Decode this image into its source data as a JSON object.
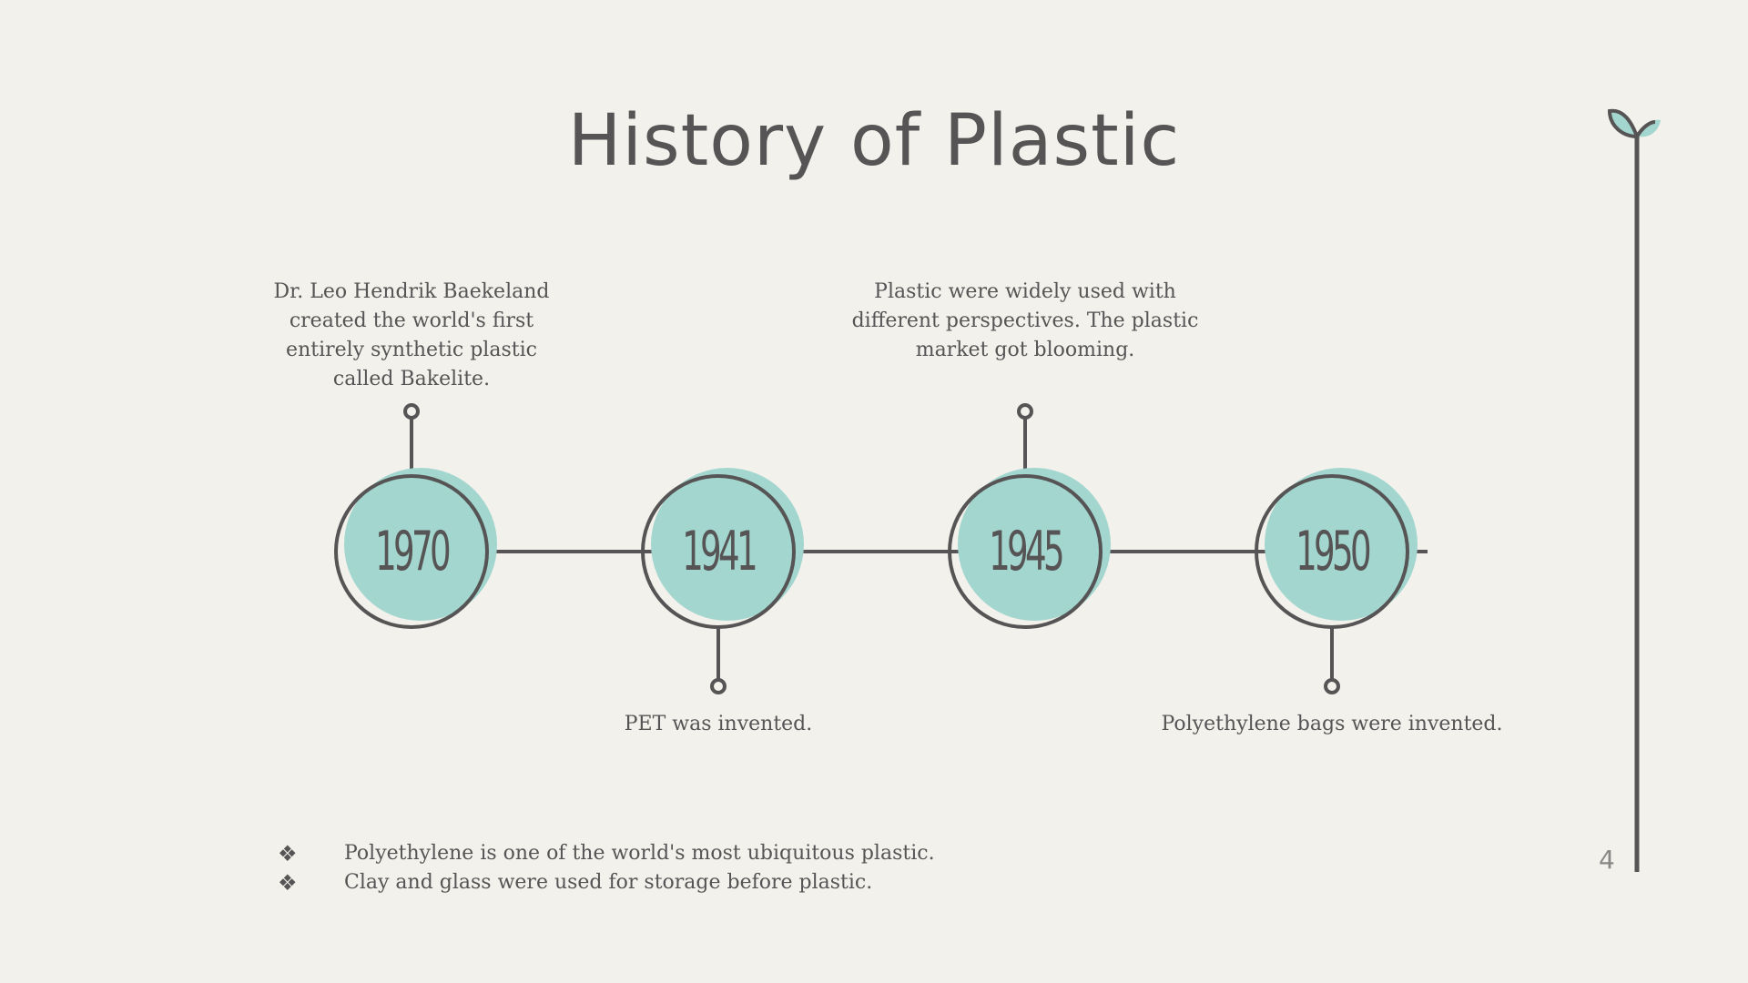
{
  "slide": {
    "title": "History of Plastic",
    "page_number": "4",
    "colors": {
      "background": "#F3F1EC",
      "accent": "#A3D6CF",
      "stroke": "#565454"
    }
  },
  "timeline": [
    {
      "year": "1970",
      "description": "Dr. Leo Hendrik Baekeland\ncreated the world's first\nentirely synthetic plastic\ncalled Bakelite."
    },
    {
      "year": "1941",
      "description": "PET was invented."
    },
    {
      "year": "1945",
      "description": "Plastic were widely used with\ndifferent perspectives. The plastic\nmarket got blooming."
    },
    {
      "year": "1950",
      "description": "Polyethylene bags were invented."
    }
  ],
  "notes": [
    {
      "marker": "❖",
      "text": "Polyethylene is one of the world's most ubiquitous plastic."
    },
    {
      "marker": "❖",
      "text": "Clay and glass were used for storage before plastic."
    }
  ],
  "decoration": {
    "icon": "sprout-icon"
  }
}
